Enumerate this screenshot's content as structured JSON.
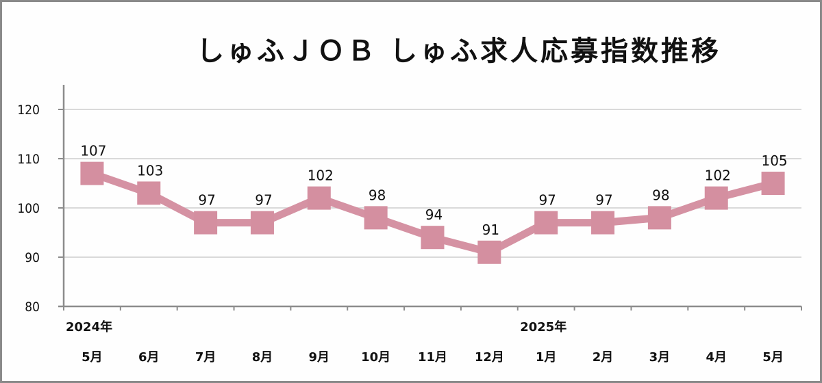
{
  "chart_data": {
    "type": "line",
    "title": "しゅふＪＯＢ しゅふ求人応募指数推移",
    "xlabel": "",
    "ylabel": "",
    "categories": [
      "5月",
      "6月",
      "7月",
      "8月",
      "9月",
      "10月",
      "11月",
      "12月",
      "1月",
      "2月",
      "3月",
      "4月",
      "5月"
    ],
    "year_labels": [
      {
        "label": "2024年",
        "index": 0
      },
      {
        "label": "2025年",
        "index": 8
      }
    ],
    "series": [
      {
        "name": "しゅふ求人応募指数",
        "values": [
          107,
          103,
          97,
          97,
          102,
          98,
          94,
          91,
          97,
          97,
          98,
          102,
          105
        ],
        "color": "#d48fa0",
        "marker": "square",
        "data_labels": true
      }
    ],
    "ylim": [
      80,
      120
    ],
    "yticks": [
      80,
      90,
      100,
      110,
      120
    ],
    "grid": true,
    "legend": "none"
  },
  "colors": {
    "line": "#d592a3",
    "marker": "#d48fa0",
    "grid": "#d9d9d9",
    "axis": "#8c8c8c",
    "frame": "#8a8a8a"
  }
}
